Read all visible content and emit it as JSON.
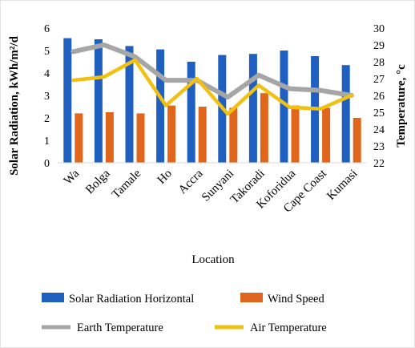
{
  "chart_data": {
    "type": "bar",
    "categories": [
      "Wa",
      "Bolga",
      "Tamale",
      "Ho",
      "Accra",
      "Sunyani",
      "Takoradi",
      "Koforidua",
      "Cape Coast",
      "Kumasi"
    ],
    "xlabel": "Location",
    "ylabel_left": "Solar Radiation, kWh/m²/d",
    "ylabel_right": "Temperature, °c",
    "ylim_left": [
      0,
      6
    ],
    "yticks_left": [
      "0",
      "1",
      "2",
      "3",
      "4",
      "5",
      "6"
    ],
    "ylim_right": [
      22,
      30
    ],
    "yticks_right": [
      "22",
      "23",
      "24",
      "25",
      "26",
      "27",
      "28",
      "29",
      "30"
    ],
    "grid": false,
    "legend_position": "bottom",
    "series": [
      {
        "name": "Solar Radiation Horizontal",
        "type": "bar",
        "axis": "left",
        "color": "#1f5fc0",
        "values": [
          5.55,
          5.5,
          5.2,
          5.05,
          4.5,
          4.8,
          4.85,
          5.0,
          4.75,
          4.35
        ]
      },
      {
        "name": "Wind Speed",
        "type": "bar",
        "axis": "left",
        "color": "#e0661c",
        "values": [
          2.2,
          2.25,
          2.2,
          2.55,
          2.5,
          2.45,
          3.1,
          2.55,
          2.45,
          2.0
        ]
      },
      {
        "name": "Earth Temperature",
        "type": "line",
        "axis": "right",
        "color": "#a6a6a6",
        "values": [
          28.6,
          29.0,
          28.3,
          26.9,
          26.9,
          25.9,
          27.2,
          26.4,
          26.3,
          26.0
        ]
      },
      {
        "name": "Air Temperature",
        "type": "line",
        "axis": "right",
        "color": "#f2c012",
        "values": [
          26.9,
          27.1,
          28.1,
          25.4,
          27.0,
          24.9,
          26.6,
          25.3,
          25.2,
          26.0
        ]
      }
    ]
  }
}
